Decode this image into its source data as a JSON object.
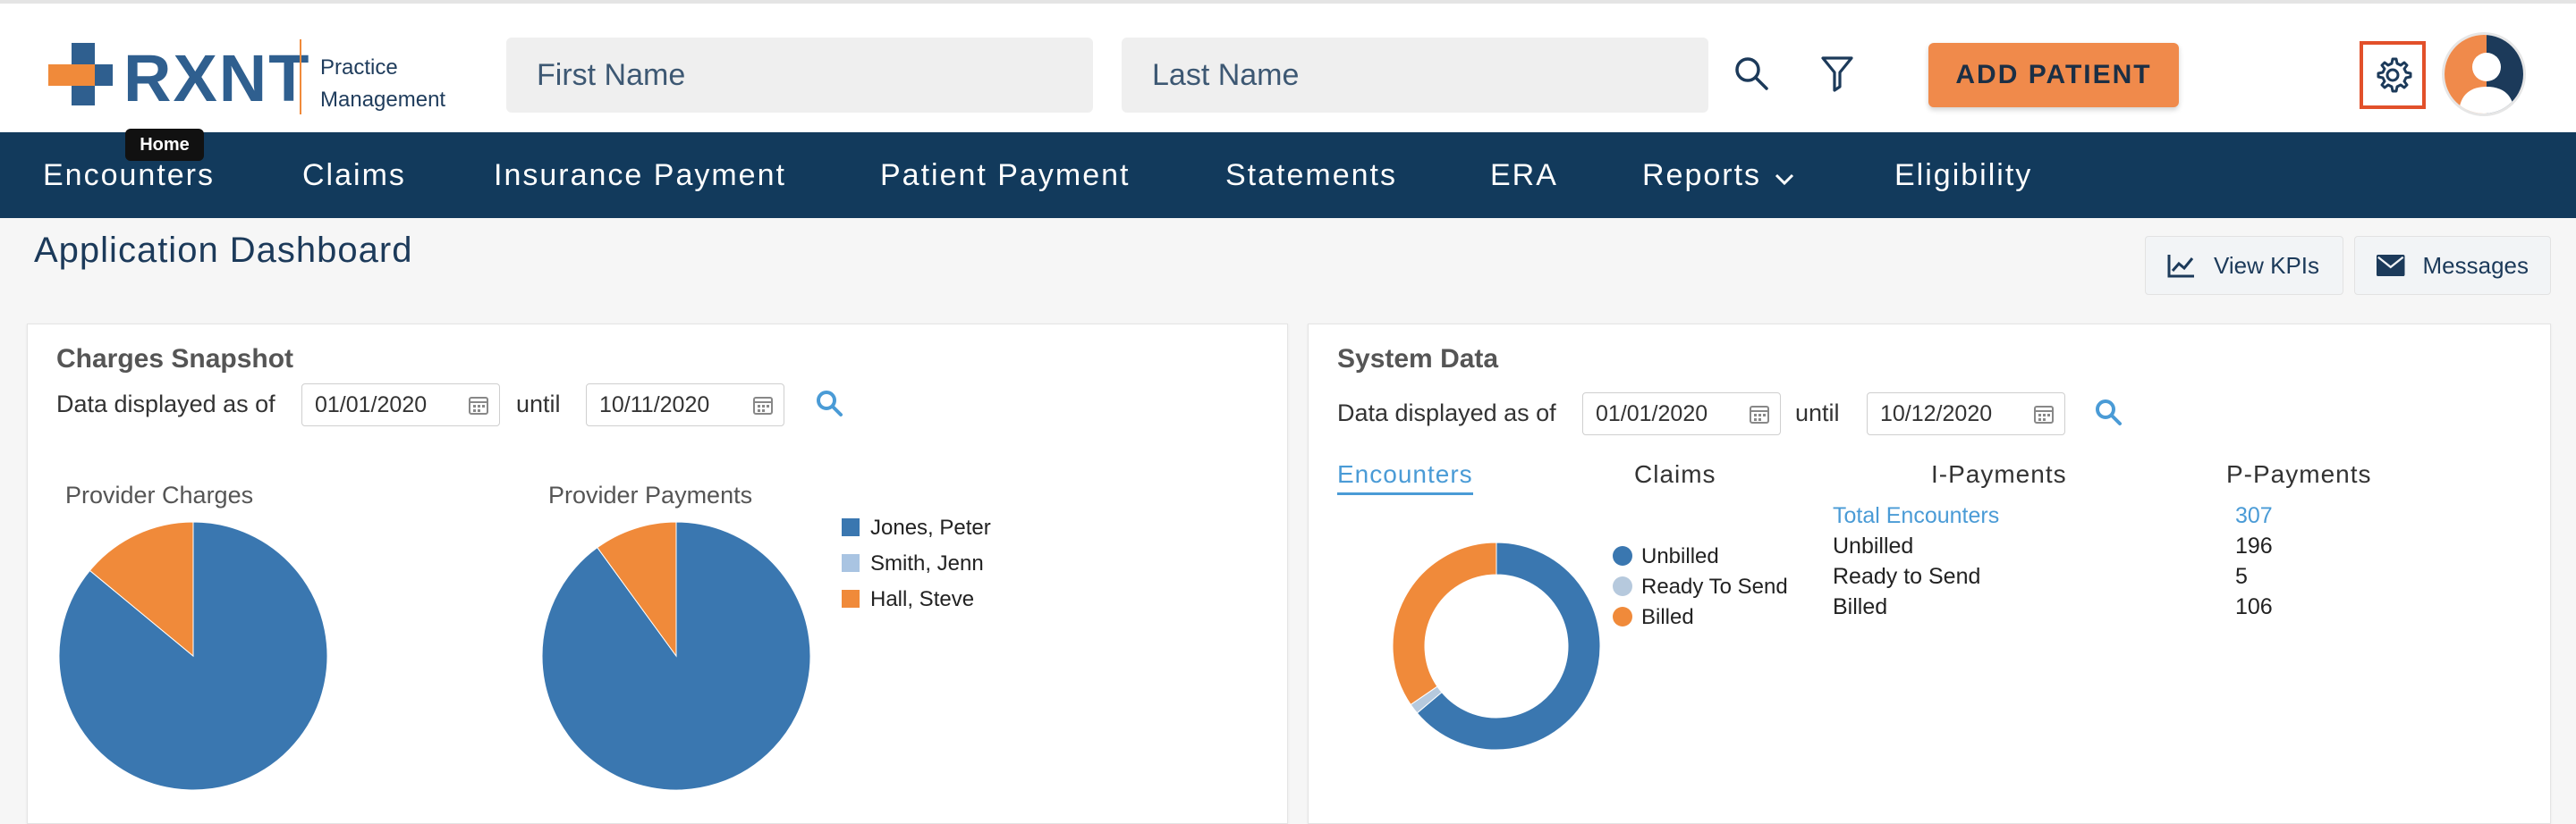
{
  "header": {
    "logo_text": "RXNT",
    "logo_sub_line1": "Practice",
    "logo_sub_line2": "Management",
    "first_name_placeholder": "First Name",
    "last_name_placeholder": "Last Name",
    "add_patient_label": "ADD PATIENT",
    "icons": [
      "search-icon",
      "filter-icon",
      "gear-icon",
      "avatar-icon"
    ]
  },
  "tooltip": {
    "text": "Home"
  },
  "nav": {
    "items": [
      {
        "label": "Encounters"
      },
      {
        "label": "Claims"
      },
      {
        "label": "Insurance Payment"
      },
      {
        "label": "Patient Payment"
      },
      {
        "label": "Statements"
      },
      {
        "label": "ERA"
      },
      {
        "label": "Reports"
      },
      {
        "label": "Eligibility"
      }
    ]
  },
  "page": {
    "title": "Application Dashboard",
    "view_kpis_label": "View KPIs",
    "messages_label": "Messages"
  },
  "charges": {
    "title": "Charges Snapshot",
    "as_of_label": "Data displayed as of",
    "until_label": "until",
    "from_date": "01/01/2020",
    "to_date": "10/11/2020",
    "provider_charges_title": "Provider Charges",
    "provider_payments_title": "Provider Payments",
    "legend": [
      "Jones, Peter",
      "Smith, Jenn",
      "Hall, Steve"
    ]
  },
  "system": {
    "title": "System Data",
    "as_of_label": "Data displayed as of",
    "until_label": "until",
    "from_date": "01/01/2020",
    "to_date": "10/12/2020",
    "tabs": [
      "Encounters",
      "Claims",
      "I-Payments",
      "P-Payments"
    ],
    "legend": [
      "Unbilled",
      "Ready To Send",
      "Billed"
    ],
    "stats": [
      {
        "label": "Total Encounters",
        "value": "307"
      },
      {
        "label": "Unbilled",
        "value": "196"
      },
      {
        "label": "Ready to Send",
        "value": "5"
      },
      {
        "label": "Billed",
        "value": "106"
      }
    ]
  },
  "colors": {
    "jones": "#3a77b0",
    "smith": "#a9c4e2",
    "hall": "#f08a3a",
    "unbilled": "#3a77b0",
    "ready": "#b6c9dd",
    "billed": "#f08a3a",
    "nav_bg": "#123a5c",
    "accent_orange": "#f08a4b"
  },
  "chart_data": [
    {
      "type": "pie",
      "title": "Provider Charges",
      "categories": [
        "Jones, Peter",
        "Smith, Jenn",
        "Hall, Steve"
      ],
      "values": [
        86,
        0,
        14
      ]
    },
    {
      "type": "pie",
      "title": "Provider Payments",
      "categories": [
        "Jones, Peter",
        "Smith, Jenn",
        "Hall, Steve"
      ],
      "values": [
        90,
        0,
        10
      ]
    },
    {
      "type": "pie",
      "title": "",
      "donut": true,
      "categories": [
        "Unbilled",
        "Ready To Send",
        "Billed"
      ],
      "values": [
        196,
        5,
        106
      ]
    }
  ]
}
